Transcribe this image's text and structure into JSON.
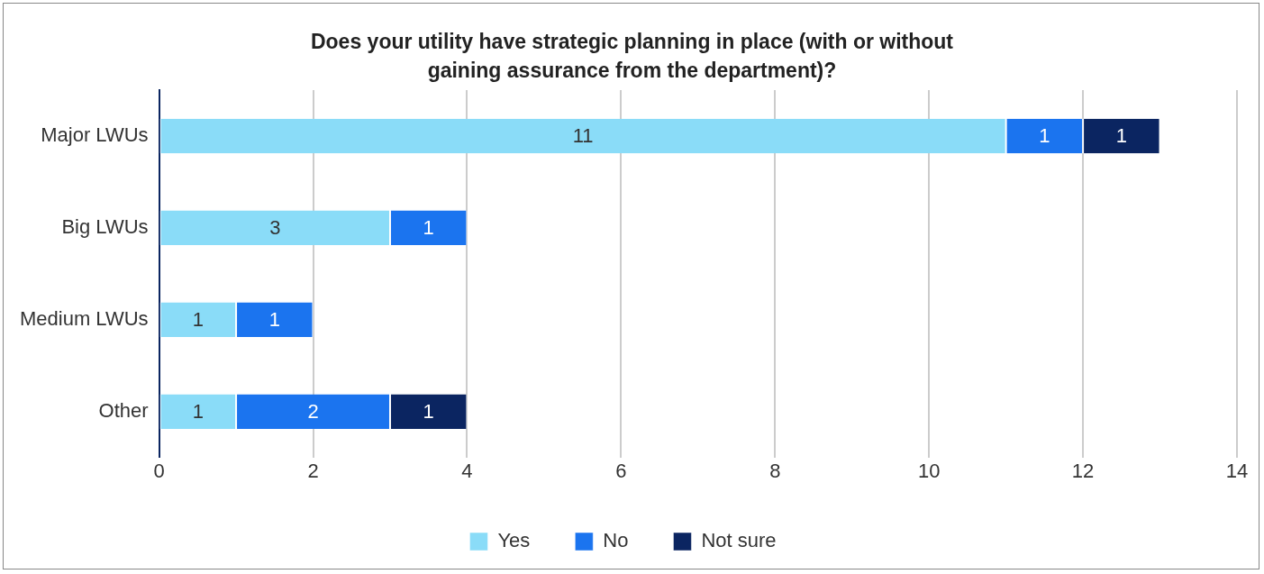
{
  "chart_data": {
    "type": "bar",
    "orientation": "horizontal",
    "stacked": true,
    "title": "Does your utility have strategic planning in place (with or without gaining assurance from the department)?",
    "categories": [
      "Major LWUs",
      "Big LWUs",
      "Medium LWUs",
      "Other"
    ],
    "series": [
      {
        "name": "Yes",
        "color": "#8adcf8",
        "values": [
          11,
          3,
          1,
          1
        ]
      },
      {
        "name": "No",
        "color": "#1b74ef",
        "values": [
          1,
          1,
          1,
          2
        ]
      },
      {
        "name": "Not sure",
        "color": "#0b2561",
        "values": [
          1,
          null,
          null,
          1
        ]
      }
    ],
    "xlim": [
      0,
      14
    ],
    "xticks": [
      0,
      2,
      4,
      6,
      8,
      10,
      12,
      14
    ],
    "grid": "x",
    "legend": "bottom",
    "data_labels": true
  }
}
